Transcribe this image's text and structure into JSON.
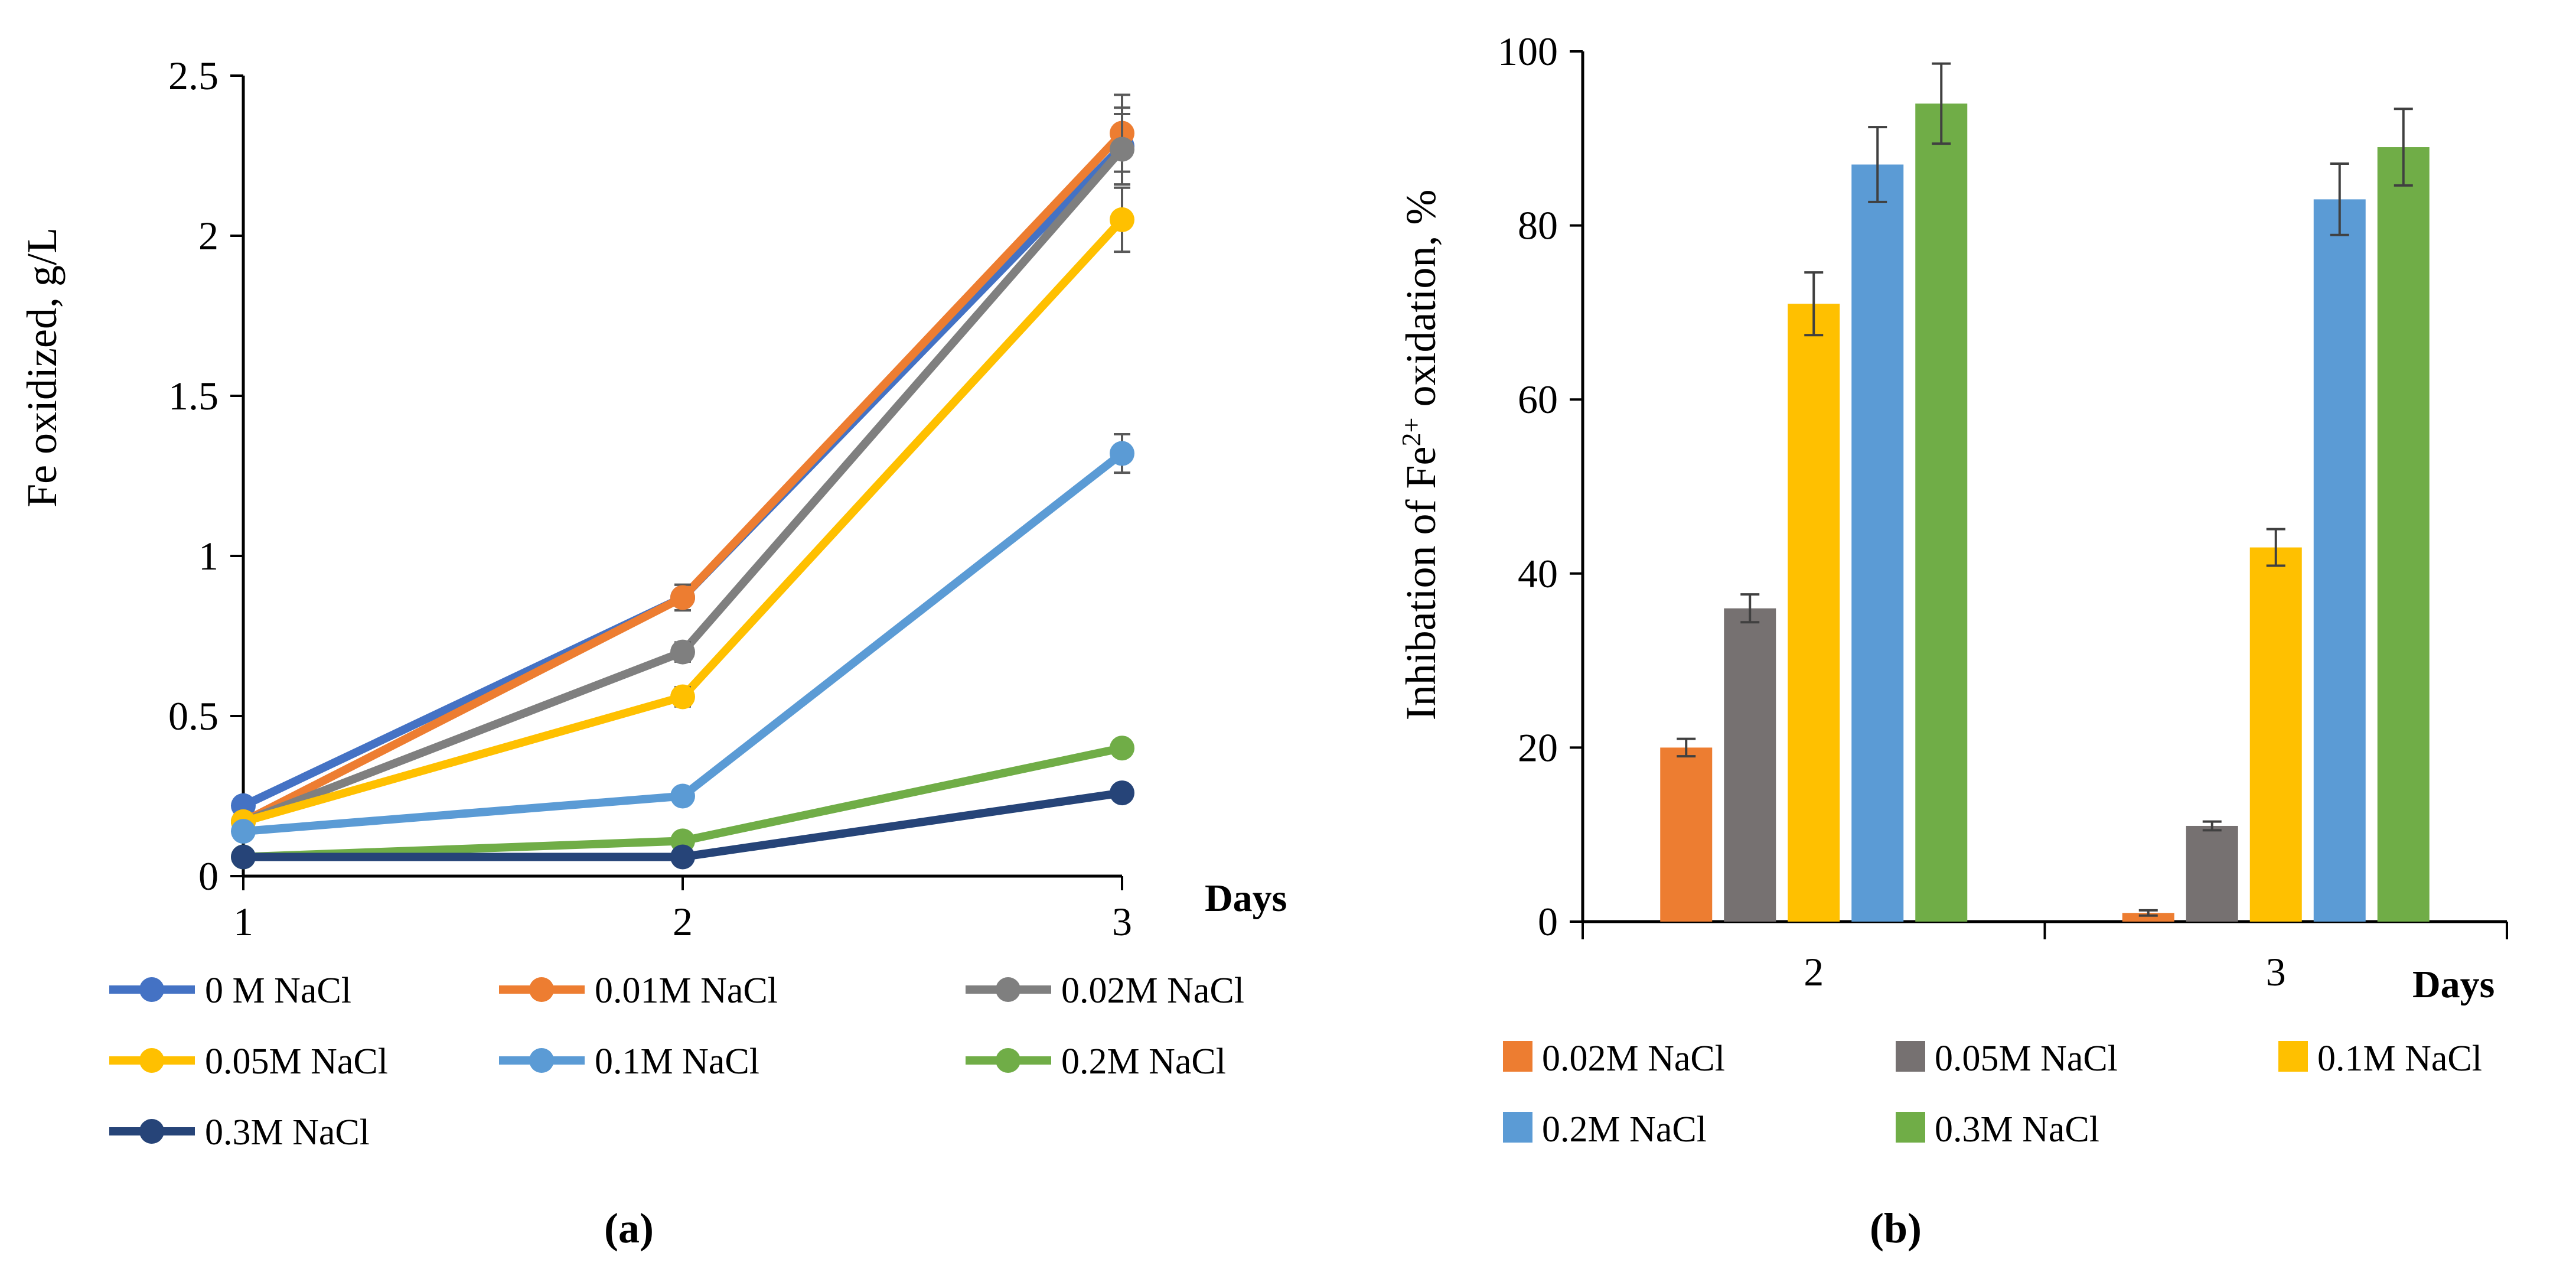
{
  "chart_data": [
    {
      "type": "line",
      "panel_label": "(a)",
      "xlabel": "Days",
      "ylabel": "Fe oxidized, g/L",
      "x": [
        1,
        2,
        3
      ],
      "x_ticks": [
        "1",
        "2",
        "3"
      ],
      "ylim": [
        0,
        2.5
      ],
      "y_ticks": [
        "0",
        "0.5",
        "1",
        "1.5",
        "2",
        "2.5"
      ],
      "grid": false,
      "legend_position": "bottom",
      "series": [
        {
          "name": "0 M NaCl",
          "color": "#4472C4",
          "values": [
            0.22,
            0.87,
            2.28
          ],
          "errors": [
            0.01,
            0.04,
            0.12
          ]
        },
        {
          "name": "0.01M NaCl",
          "color": "#ED7D31",
          "values": [
            0.17,
            0.87,
            2.32
          ],
          "errors": [
            0.01,
            0.04,
            0.12
          ]
        },
        {
          "name": "0.02M NaCl",
          "color": "#7F7F7F",
          "values": [
            0.17,
            0.7,
            2.27
          ],
          "errors": [
            0.01,
            0.03,
            0.11
          ]
        },
        {
          "name": "0.05M NaCl",
          "color": "#FFC000",
          "values": [
            0.17,
            0.56,
            2.05
          ],
          "errors": [
            0.01,
            0.03,
            0.1
          ]
        },
        {
          "name": "0.1M NaCl",
          "color": "#5B9BD5",
          "values": [
            0.14,
            0.25,
            1.32
          ],
          "errors": [
            0.01,
            0.01,
            0.06
          ]
        },
        {
          "name": "0.2M NaCl",
          "color": "#70AD47",
          "values": [
            0.06,
            0.11,
            0.4
          ],
          "errors": [
            0.005,
            0.005,
            0.02
          ]
        },
        {
          "name": "0.3M NaCl",
          "color": "#264478",
          "values": [
            0.06,
            0.06,
            0.26
          ],
          "errors": [
            0.005,
            0.005,
            0.01
          ]
        }
      ]
    },
    {
      "type": "bar",
      "panel_label": "(b)",
      "xlabel": "Days",
      "ylabel_main": "Inhibation of Fe",
      "ylabel_sup": "2+",
      "ylabel_tail": " oxidation, %",
      "categories": [
        "2",
        "3"
      ],
      "ylim": [
        0,
        100
      ],
      "y_ticks": [
        "0",
        "20",
        "40",
        "60",
        "80",
        "100"
      ],
      "grid": false,
      "legend_position": "bottom",
      "series": [
        {
          "name": "0.02M NaCl",
          "color": "#ED7D31",
          "values": [
            20,
            1
          ],
          "errors": [
            1.0,
            0.3
          ]
        },
        {
          "name": "0.05M NaCl",
          "color": "#767171",
          "values": [
            36,
            11
          ],
          "errors": [
            1.6,
            0.5
          ]
        },
        {
          "name": "0.1M NaCl",
          "color": "#FFC000",
          "values": [
            71,
            43
          ],
          "errors": [
            3.6,
            2.1
          ]
        },
        {
          "name": "0.2M NaCl",
          "color": "#5B9BD5",
          "values": [
            87,
            83
          ],
          "errors": [
            4.3,
            4.1
          ]
        },
        {
          "name": "0.3M NaCl",
          "color": "#70AD47",
          "values": [
            94,
            89
          ],
          "errors": [
            4.6,
            4.4
          ]
        }
      ]
    }
  ]
}
